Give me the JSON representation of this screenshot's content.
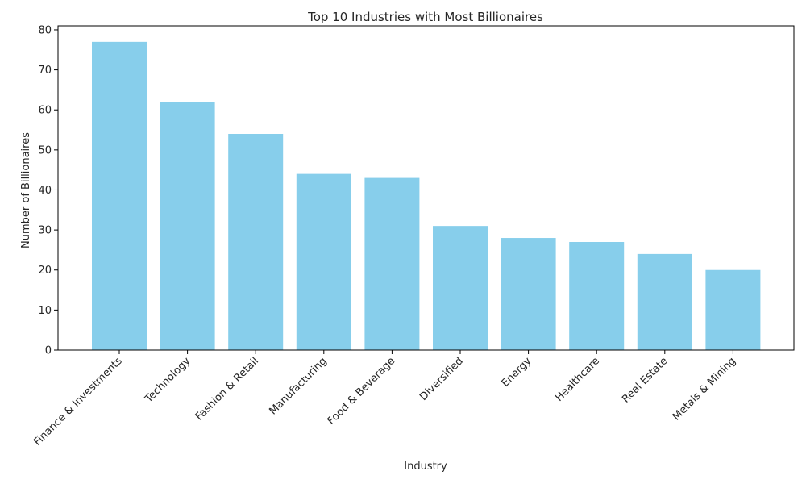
{
  "chart_data": {
    "type": "bar",
    "title": "Top 10 Industries with Most Billionaires",
    "xlabel": "Industry",
    "ylabel": "Number of Billionaires",
    "categories": [
      "Finance & Investments",
      "Technology",
      "Fashion & Retail",
      "Manufacturing",
      "Food & Beverage",
      "Diversified",
      "Energy",
      "Healthcare",
      "Real Estate",
      "Metals & Mining"
    ],
    "values": [
      77,
      62,
      54,
      44,
      43,
      31,
      28,
      27,
      24,
      20
    ],
    "ylim": [
      0,
      81
    ],
    "yticks": [
      0,
      10,
      20,
      30,
      40,
      50,
      60,
      70,
      80
    ],
    "bar_color": "#87ceeb",
    "grid": false,
    "legend": "none"
  }
}
